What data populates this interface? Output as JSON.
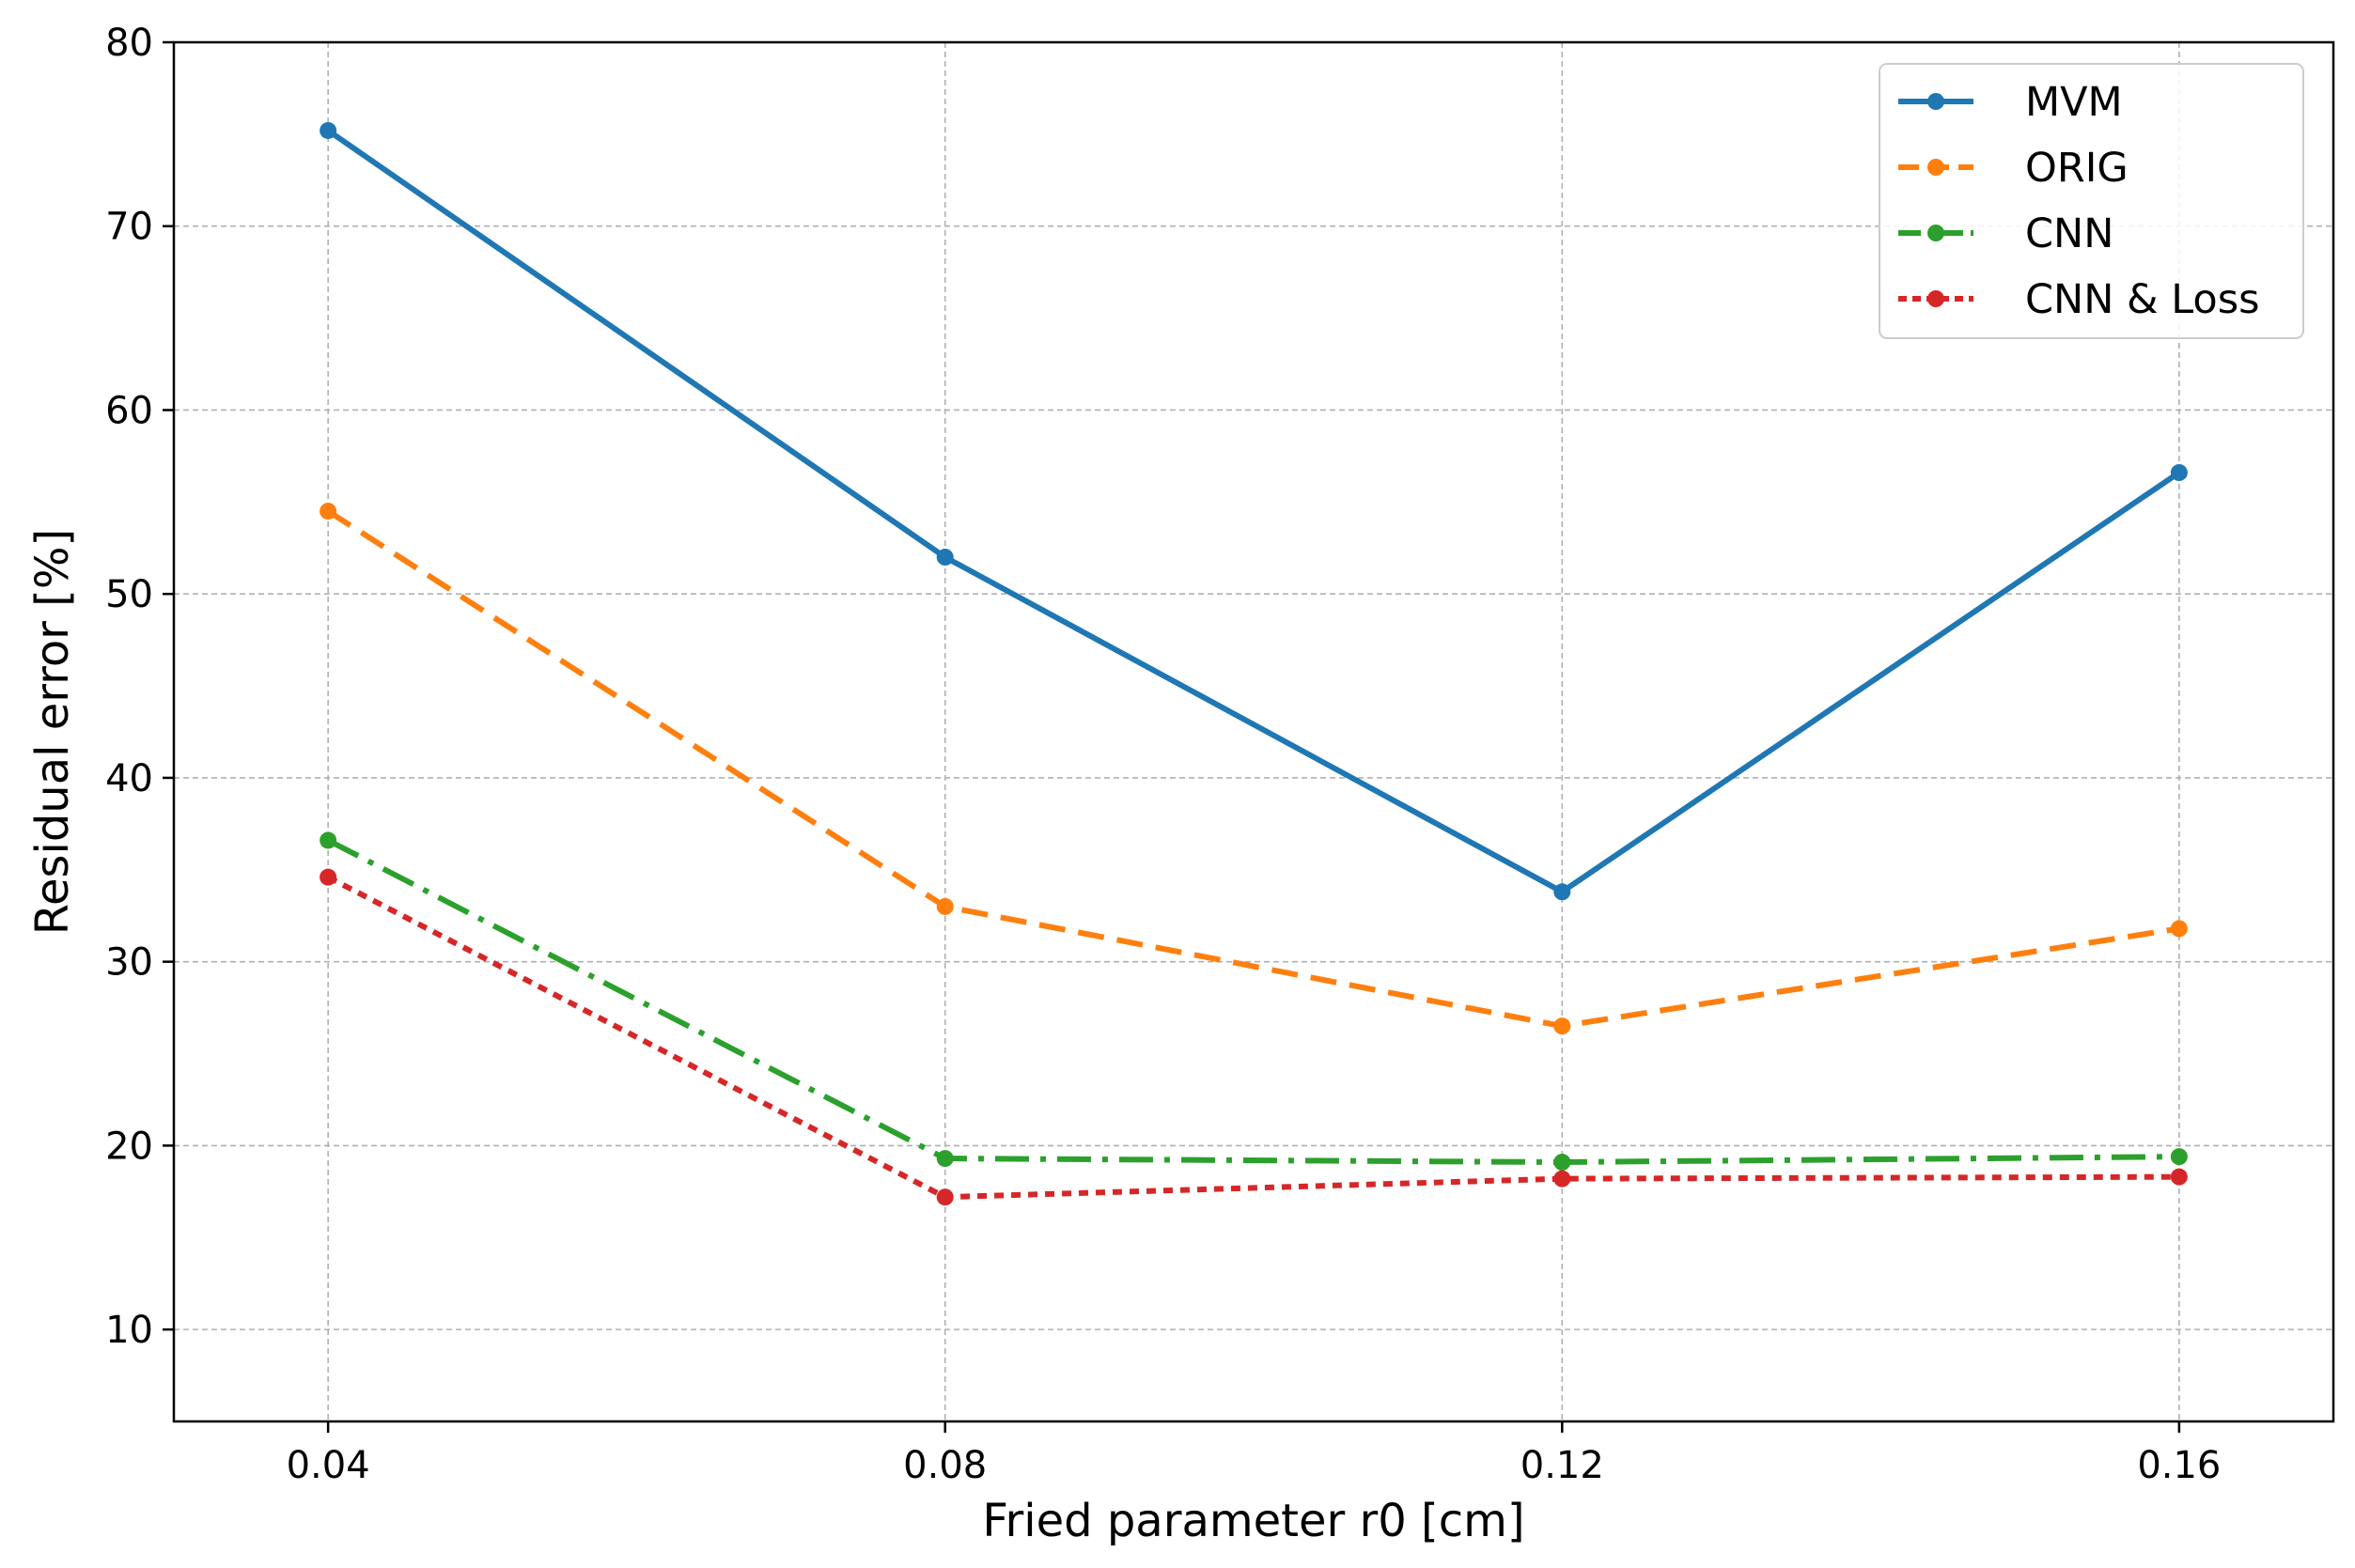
{
  "chart_data": {
    "type": "line",
    "title": "",
    "xlabel": "Fried parameter r0 [cm]",
    "ylabel": "Residual error [%]",
    "x": [
      0.04,
      0.08,
      0.12,
      0.16
    ],
    "x_tick_labels": [
      "0.04",
      "0.08",
      "0.12",
      "0.16"
    ],
    "xlim": [
      0.03,
      0.17
    ],
    "ylim": [
      5,
      80
    ],
    "y_ticks": [
      10,
      20,
      30,
      40,
      50,
      60,
      70,
      80
    ],
    "y_tick_labels": [
      "10",
      "20",
      "30",
      "40",
      "50",
      "60",
      "70",
      "80"
    ],
    "grid": true,
    "legend_position": "top-right",
    "series": [
      {
        "name": "MVM",
        "values": [
          75.2,
          52.0,
          33.8,
          56.6
        ],
        "color": "#1f77b4",
        "line_style": "solid"
      },
      {
        "name": "ORIG",
        "values": [
          54.5,
          33.0,
          26.5,
          31.8
        ],
        "color": "#ff7f0e",
        "line_style": "dashed"
      },
      {
        "name": "CNN",
        "values": [
          36.6,
          19.3,
          19.1,
          19.4
        ],
        "color": "#2ca02c",
        "line_style": "dashdot"
      },
      {
        "name": "CNN & Loss",
        "values": [
          34.6,
          17.2,
          18.2,
          18.3
        ],
        "color": "#d62728",
        "line_style": "dotted"
      }
    ]
  }
}
